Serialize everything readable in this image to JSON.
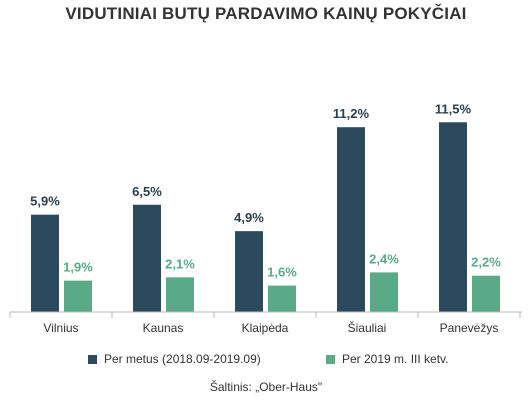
{
  "chart_data": {
    "type": "bar",
    "title": "VIDUTINIAI BUTŲ PARDAVIMO KAINŲ POKYČIAI",
    "categories": [
      "Vilnius",
      "Kaunas",
      "Klaipėda",
      "Šiauliai",
      "Panevėžys"
    ],
    "series": [
      {
        "name": "Per metus (2018.09-2019.09)",
        "color": "#2c4a5e",
        "values": [
          5.9,
          6.5,
          4.9,
          11.2,
          11.5
        ],
        "labels": [
          "5,9%",
          "6,5%",
          "4,9%",
          "11,2%",
          "11,5%"
        ]
      },
      {
        "name": "Per 2019 m. III ketv.",
        "color": "#5aaa88",
        "values": [
          1.9,
          2.1,
          1.6,
          2.4,
          2.2
        ],
        "labels": [
          "1,9%",
          "2,1%",
          "1,6%",
          "2,4%",
          "2,2%"
        ]
      }
    ],
    "ylim": [
      0,
      12
    ],
    "grid": false,
    "legend_position": "bottom",
    "source": "Šaltinis: „Ober-Haus\""
  }
}
